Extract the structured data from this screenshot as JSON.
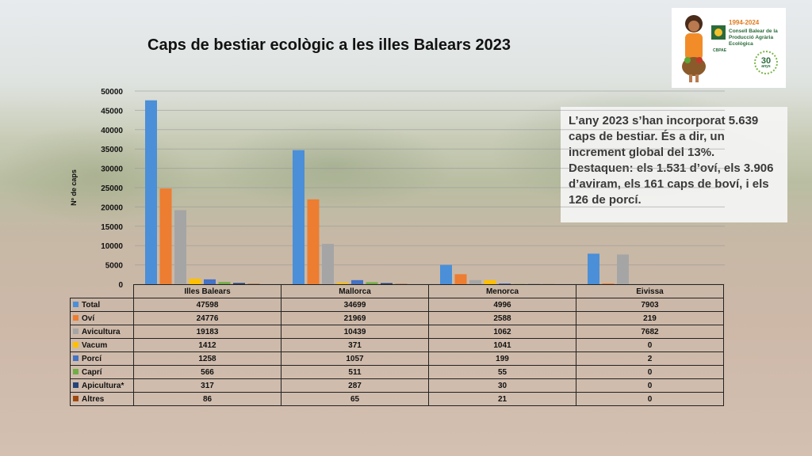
{
  "title": "Caps de bestiar ecològic a les illes Balears 2023",
  "logo": {
    "years": "1994-2024",
    "org_line1": "Consell Balear de la",
    "org_line2": "Producció Agrària",
    "org_line3": "Ecològica",
    "badge_number": "30",
    "badge_text": "anys",
    "acronym": "CBPAE"
  },
  "info_text": "L’any 2023 s’han incorporat 5.639 caps de bestiar. És a dir, un increment global del 13%. Destaquen: els 1.531 d’oví, els 3.906 d’aviram, els 161 caps de boví, i els 126 de porcí.",
  "chart_data": {
    "type": "bar",
    "title": "Caps de bestiar ecològic a les illes Balears 2023",
    "ylabel": "Nº de caps",
    "ylim": [
      0,
      50000
    ],
    "yticks": [
      0,
      5000,
      10000,
      15000,
      20000,
      25000,
      30000,
      35000,
      40000,
      45000,
      50000
    ],
    "categories": [
      "Illes Balears",
      "Mallorca",
      "Menorca",
      "Eivissa"
    ],
    "series": [
      {
        "name": "Total",
        "color": "#4a8fd8",
        "values": [
          47598,
          34699,
          4996,
          7903
        ]
      },
      {
        "name": "Oví",
        "color": "#ed7d31",
        "values": [
          24776,
          21969,
          2588,
          219
        ]
      },
      {
        "name": "Avicultura",
        "color": "#a5a5a5",
        "values": [
          19183,
          10439,
          1062,
          7682
        ]
      },
      {
        "name": "Vacum",
        "color": "#ffc000",
        "values": [
          1412,
          371,
          1041,
          0
        ]
      },
      {
        "name": "Porcí",
        "color": "#4472c4",
        "values": [
          1258,
          1057,
          199,
          2
        ]
      },
      {
        "name": "Caprí",
        "color": "#70ad47",
        "values": [
          566,
          511,
          55,
          0
        ]
      },
      {
        "name": "Apicultura*",
        "color": "#264478",
        "values": [
          317,
          287,
          30,
          0
        ]
      },
      {
        "name": "Altres",
        "color": "#9e480e",
        "values": [
          86,
          65,
          21,
          0
        ]
      }
    ],
    "grid": true,
    "legend": "data-table"
  }
}
